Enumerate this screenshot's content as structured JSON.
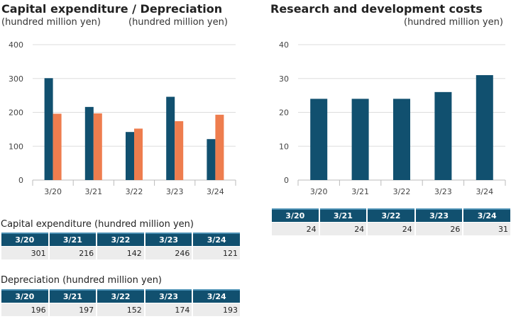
{
  "left": {
    "title": "Capital expenditure / Depreciation",
    "unit_left": "(hundred million yen)",
    "unit_right": "(hundred million yen)"
  },
  "right": {
    "title": "Research and development costs",
    "unit": "(hundred million yen)"
  },
  "colors": {
    "capex": "#11506f",
    "depreciation": "#ee7d4e",
    "rnd": "#11506f",
    "header": "#11506f"
  },
  "chart_data": [
    {
      "type": "bar",
      "title": "Capital expenditure / Depreciation",
      "ylabel": "(hundred million yen)",
      "categories": [
        "3/20",
        "3/21",
        "3/22",
        "3/23",
        "3/24"
      ],
      "series": [
        {
          "name": "Capital expenditure",
          "values": [
            301,
            216,
            142,
            246,
            121
          ]
        },
        {
          "name": "Depreciation",
          "values": [
            196,
            197,
            152,
            174,
            193
          ]
        }
      ],
      "ylim": [
        0,
        400
      ],
      "yticks": [
        0,
        100,
        200,
        300,
        400
      ],
      "grid": true
    },
    {
      "type": "bar",
      "title": "Research and development costs",
      "ylabel": "(hundred million yen)",
      "categories": [
        "3/20",
        "3/21",
        "3/22",
        "3/23",
        "3/24"
      ],
      "series": [
        {
          "values": [
            24,
            24,
            24,
            26,
            31
          ]
        }
      ],
      "ylim": [
        0,
        40
      ],
      "yticks": [
        0,
        10,
        20,
        30,
        40
      ],
      "grid": true
    }
  ],
  "tables": {
    "capex": {
      "caption": "Capital expenditure (hundred million yen)",
      "headers": [
        "3/20",
        "3/21",
        "3/22",
        "3/23",
        "3/24"
      ],
      "values": [
        "301",
        "216",
        "142",
        "246",
        "121"
      ]
    },
    "depreciation": {
      "caption": "Depreciation (hundred million yen)",
      "headers": [
        "3/20",
        "3/21",
        "3/22",
        "3/23",
        "3/24"
      ],
      "values": [
        "196",
        "197",
        "152",
        "174",
        "193"
      ]
    },
    "rnd": {
      "headers": [
        "3/20",
        "3/21",
        "3/22",
        "3/23",
        "3/24"
      ],
      "values": [
        "24",
        "24",
        "24",
        "26",
        "31"
      ]
    }
  }
}
